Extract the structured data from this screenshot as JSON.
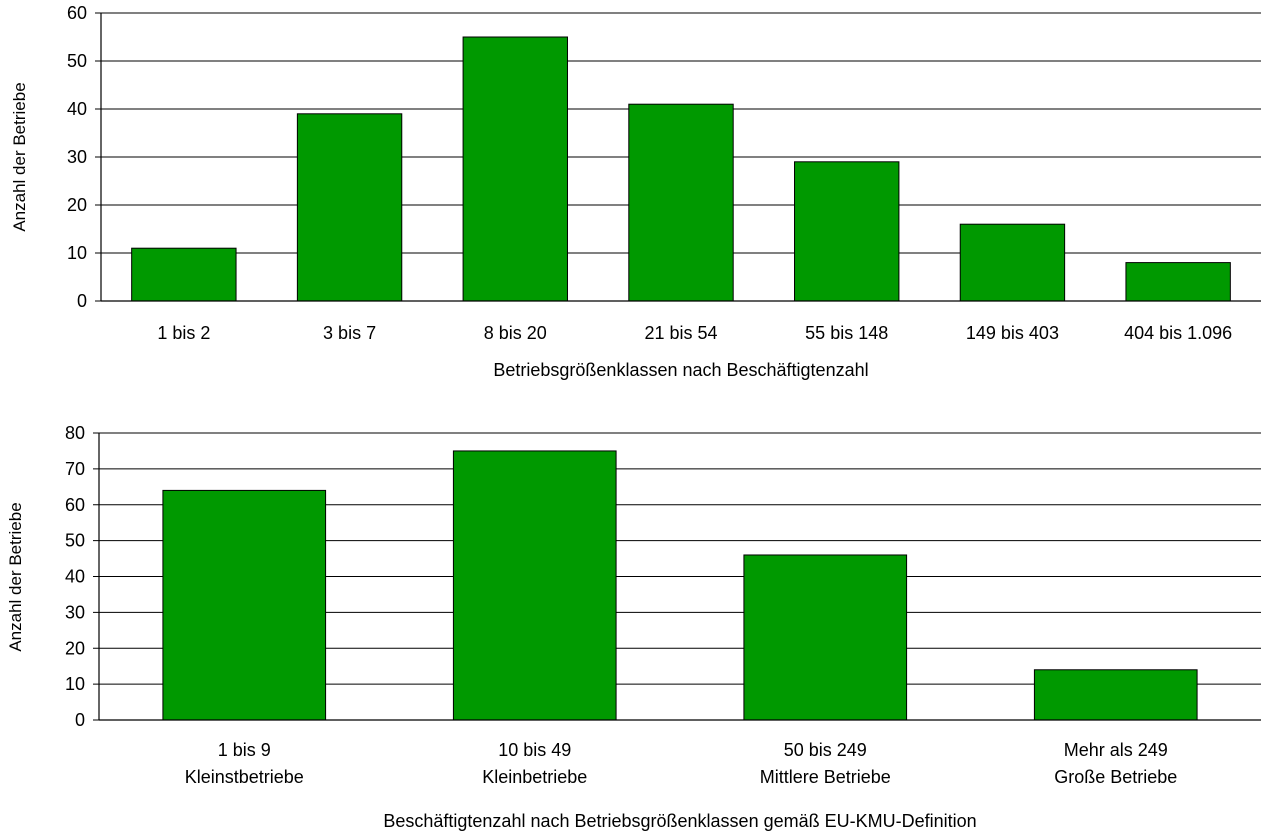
{
  "chart_data": [
    {
      "type": "bar",
      "categories": [
        "1 bis 2",
        "3 bis 7",
        "8 bis 20",
        "21 bis 54",
        "55 bis 148",
        "149 bis 403",
        "404 bis 1.096"
      ],
      "values": [
        11,
        39,
        55,
        41,
        29,
        16,
        8
      ],
      "xlabel": "Betriebsgrößenklassen nach Beschäftigtenzahl",
      "ylabel": "Anzahl der Betriebe",
      "ylim": [
        0,
        60
      ],
      "yticks": [
        0,
        10,
        20,
        30,
        40,
        50,
        60
      ],
      "grid": true,
      "bar_color": "#009900"
    },
    {
      "type": "bar",
      "categories": [
        [
          "1 bis 9",
          "Kleinstbetriebe"
        ],
        [
          "10 bis 49",
          "Kleinbetriebe"
        ],
        [
          "50 bis 249",
          "Mittlere Betriebe"
        ],
        [
          "Mehr als 249",
          "Große Betriebe"
        ]
      ],
      "values": [
        64,
        75,
        46,
        14
      ],
      "xlabel": "Beschäftigtenzahl nach Betriebsgrößenklassen gemäß EU-KMU-Definition",
      "ylabel": "Anzahl der Betriebe",
      "ylim": [
        0,
        80
      ],
      "yticks": [
        0,
        10,
        20,
        30,
        40,
        50,
        60,
        70,
        80
      ],
      "grid": true,
      "bar_color": "#009900"
    }
  ]
}
